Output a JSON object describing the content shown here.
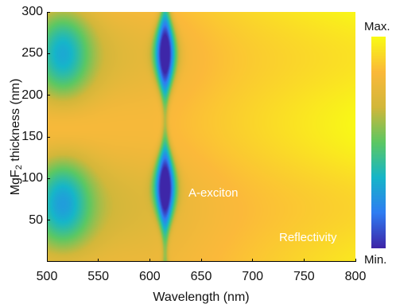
{
  "chart_data": {
    "type": "heatmap",
    "title": "",
    "xlabel": "Wavelength (nm)",
    "ylabel": {
      "prefix": "MgF",
      "subscript": "2",
      "suffix": " thickness (nm)"
    },
    "xlim": [
      500,
      800
    ],
    "ylim": [
      0,
      300
    ],
    "x_ticks": [
      500,
      550,
      600,
      650,
      700,
      750,
      800
    ],
    "y_ticks": [
      50,
      100,
      150,
      200,
      250,
      300
    ],
    "quantity": "Reflectivity",
    "colorbar": {
      "max_label": "Max.",
      "min_label": "Min."
    },
    "colormap": [
      "#3e26a8",
      "#2f7df3",
      "#16b6c9",
      "#5cc863",
      "#d2b73a",
      "#fbb93a",
      "#f9fb15"
    ],
    "features": [
      {
        "label": "A-exciton",
        "wavelength_nm": 615,
        "min_thickness_nm": [
          90,
          250
        ]
      }
    ],
    "broad_minima": [
      {
        "wavelength_nm": 515,
        "thickness_nm": 70
      },
      {
        "wavelength_nm": 515,
        "thickness_nm": 250
      }
    ],
    "annotations": [
      {
        "text": "A-exciton",
        "x": 637,
        "y": 92
      },
      {
        "text": "Reflectivity",
        "x": 730,
        "y": 27
      }
    ]
  }
}
